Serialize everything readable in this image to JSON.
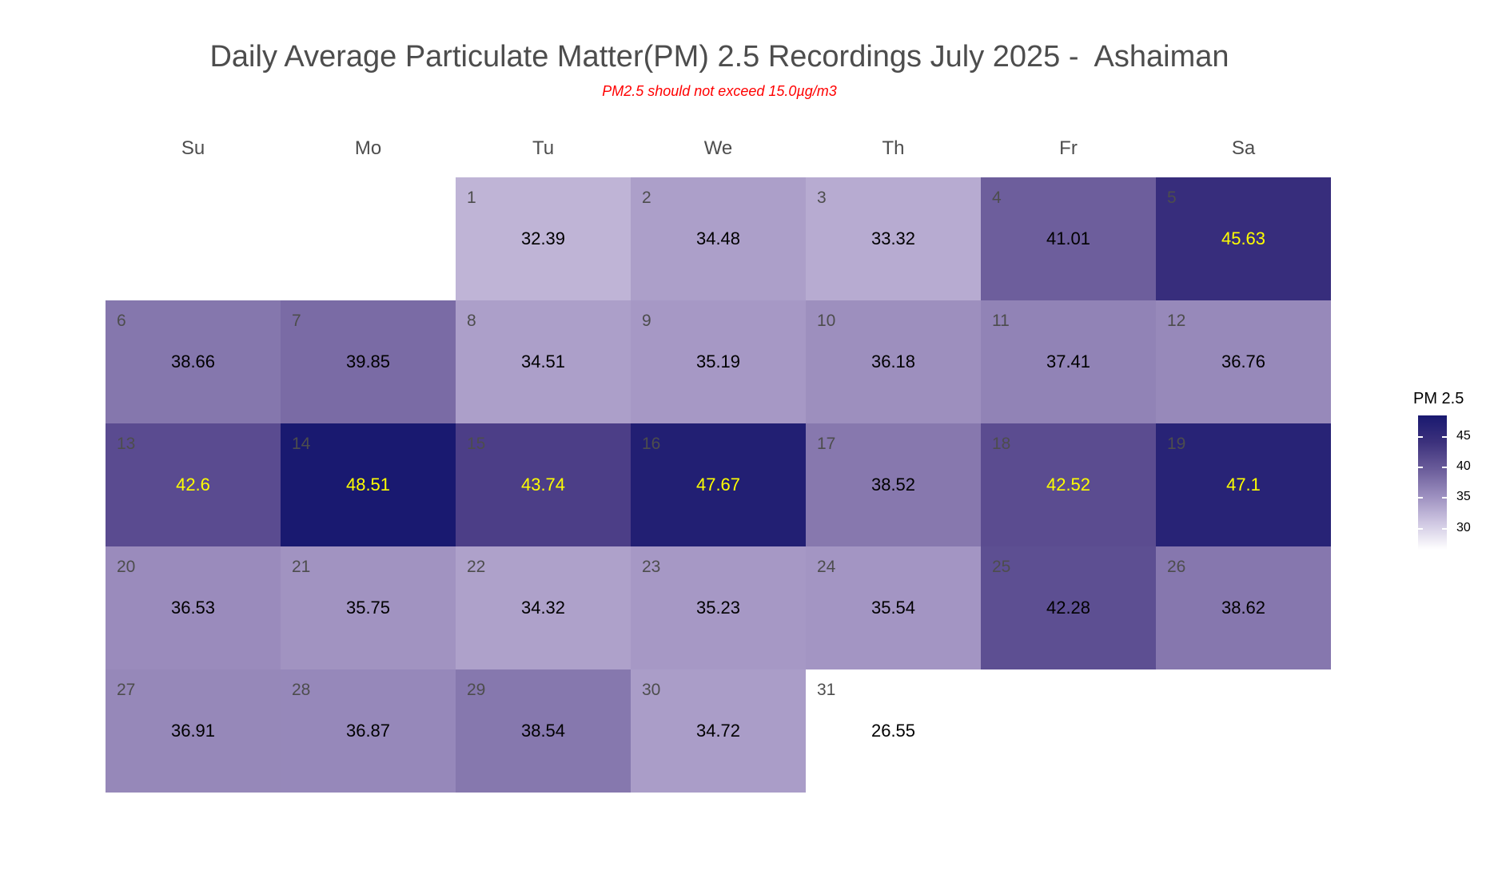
{
  "title": "Daily Average Particulate Matter(PM) 2.5 Recordings July 2025 -  Ashaiman",
  "subtitle": "PM2.5 should not exceed 15.0µg/m3",
  "chart_data": {
    "type": "heatmap",
    "title": "Daily Average Particulate Matter(PM) 2.5 Recordings July 2025 -  Ashaiman",
    "subtitle": "PM2.5 should not exceed 15.0µg/m3",
    "weekdays": [
      "Su",
      "Mo",
      "Tu",
      "We",
      "Th",
      "Fr",
      "Sa"
    ],
    "first_weekday_index": 2,
    "days": [
      {
        "day": "1",
        "value": 32.39,
        "label": "32.39"
      },
      {
        "day": "2",
        "value": 34.48,
        "label": "34.48"
      },
      {
        "day": "3",
        "value": 33.32,
        "label": "33.32"
      },
      {
        "day": "4",
        "value": 41.01,
        "label": "41.01"
      },
      {
        "day": "5",
        "value": 45.63,
        "label": "45.63"
      },
      {
        "day": "6",
        "value": 38.66,
        "label": "38.66"
      },
      {
        "day": "7",
        "value": 39.85,
        "label": "39.85"
      },
      {
        "day": "8",
        "value": 34.51,
        "label": "34.51"
      },
      {
        "day": "9",
        "value": 35.19,
        "label": "35.19"
      },
      {
        "day": "10",
        "value": 36.18,
        "label": "36.18"
      },
      {
        "day": "11",
        "value": 37.41,
        "label": "37.41"
      },
      {
        "day": "12",
        "value": 36.76,
        "label": "36.76"
      },
      {
        "day": "13",
        "value": 42.6,
        "label": "42.6"
      },
      {
        "day": "14",
        "value": 48.51,
        "label": "48.51"
      },
      {
        "day": "15",
        "value": 43.74,
        "label": "43.74"
      },
      {
        "day": "16",
        "value": 47.67,
        "label": "47.67"
      },
      {
        "day": "17",
        "value": 38.52,
        "label": "38.52"
      },
      {
        "day": "18",
        "value": 42.52,
        "label": "42.52"
      },
      {
        "day": "19",
        "value": 47.1,
        "label": "47.1"
      },
      {
        "day": "20",
        "value": 36.53,
        "label": "36.53"
      },
      {
        "day": "21",
        "value": 35.75,
        "label": "35.75"
      },
      {
        "day": "22",
        "value": 34.32,
        "label": "34.32"
      },
      {
        "day": "23",
        "value": 35.23,
        "label": "35.23"
      },
      {
        "day": "24",
        "value": 35.54,
        "label": "35.54"
      },
      {
        "day": "25",
        "value": 42.28,
        "label": "42.28"
      },
      {
        "day": "26",
        "value": 38.62,
        "label": "38.62"
      },
      {
        "day": "27",
        "value": 36.91,
        "label": "36.91"
      },
      {
        "day": "28",
        "value": 36.87,
        "label": "36.87"
      },
      {
        "day": "29",
        "value": 38.54,
        "label": "38.54"
      },
      {
        "day": "30",
        "value": 34.72,
        "label": "34.72"
      },
      {
        "day": "31",
        "value": 26.55,
        "label": "26.55"
      }
    ],
    "highlight_threshold": 42.5,
    "legend": {
      "title": "PM 2.5",
      "ticks": [
        "45",
        "40",
        "35",
        "30"
      ],
      "tick_values": [
        45,
        40,
        35,
        30
      ],
      "range": [
        26.55,
        48.51
      ],
      "placement": "right"
    },
    "colors": {
      "low": "#ffffff",
      "high": "#191970",
      "label_normal": "#000000",
      "label_high": "#ffff00",
      "day_number": "#4d4d4d"
    }
  }
}
